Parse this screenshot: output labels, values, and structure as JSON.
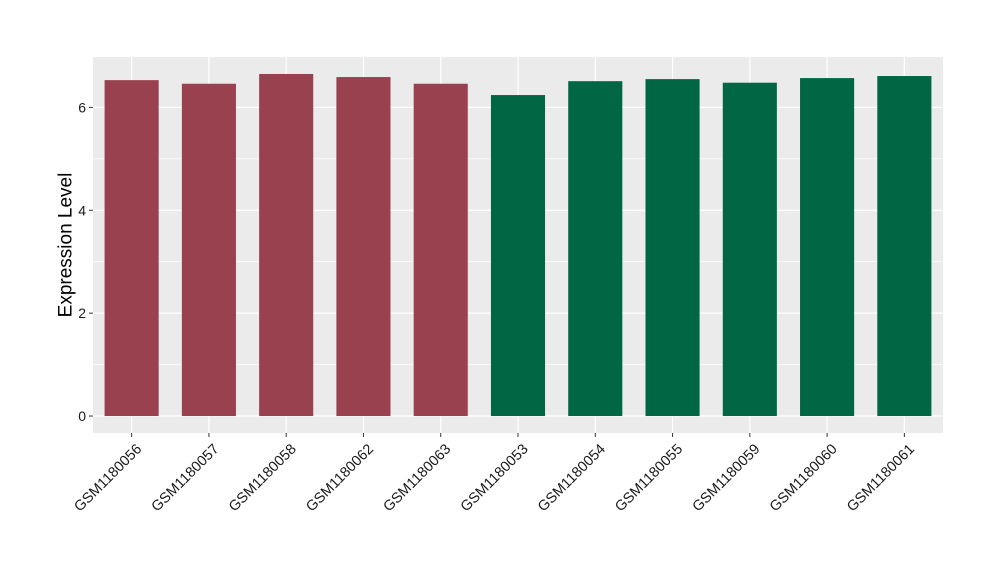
{
  "chart_data": {
    "type": "bar",
    "title": "",
    "xlabel": "",
    "ylabel": "Expression Level",
    "categories": [
      "GSM1180056",
      "GSM1180057",
      "GSM1180058",
      "GSM1180062",
      "GSM1180063",
      "GSM1180053",
      "GSM1180054",
      "GSM1180055",
      "GSM1180059",
      "GSM1180060",
      "GSM1180061"
    ],
    "values": [
      6.53,
      6.46,
      6.65,
      6.59,
      6.46,
      6.24,
      6.51,
      6.55,
      6.48,
      6.57,
      6.61
    ],
    "bar_colors": [
      "#99414f",
      "#99414f",
      "#99414f",
      "#99414f",
      "#99414f",
      "#006644",
      "#006644",
      "#006644",
      "#006644",
      "#006644",
      "#006644"
    ],
    "ylim": [
      -0.33,
      6.98
    ],
    "yticks": [
      0,
      2,
      4,
      6
    ],
    "grid": true,
    "panel_background": "#ebebeb",
    "grid_color": "#ffffff"
  }
}
